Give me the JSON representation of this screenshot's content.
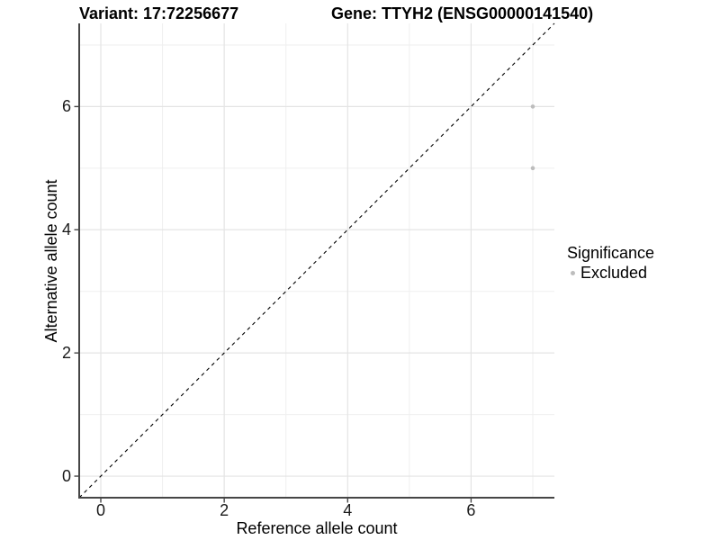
{
  "colors": {
    "background": "#ffffff",
    "axis_line": "#464646",
    "tick_mark": "#464646",
    "grid_major": "#e4e4e4",
    "grid_minor": "#efefef",
    "point": "#bdbdbd",
    "dashed_line": "#000000",
    "text": "#000000"
  },
  "chart_data": {
    "type": "scatter",
    "title_variant": "Variant: 17:72256677",
    "title_gene": "Gene: TTYH2 (ENSG00000141540)",
    "xlabel": "Reference allele count",
    "ylabel": "Alternative allele count",
    "xlim": [
      -0.35,
      7.35
    ],
    "ylim": [
      -0.35,
      7.35
    ],
    "x_ticks": [
      0,
      2,
      4,
      6
    ],
    "y_ticks": [
      0,
      2,
      4,
      6
    ],
    "x_minor_ticks": [
      1,
      3,
      5,
      7
    ],
    "y_minor_ticks": [
      1,
      3,
      5,
      7
    ],
    "grid": true,
    "identity_line": {
      "style": "dashed",
      "slope": 1,
      "intercept": 0,
      "color": "#000000"
    },
    "series": [
      {
        "name": "Excluded",
        "color": "#bdbdbd",
        "points": [
          {
            "x": 7,
            "y": 6
          },
          {
            "x": 7,
            "y": 5
          }
        ]
      }
    ],
    "legend": {
      "position": "right",
      "title": "Significance",
      "items": [
        {
          "label": "Excluded",
          "color": "#bdbdbd"
        }
      ]
    }
  }
}
